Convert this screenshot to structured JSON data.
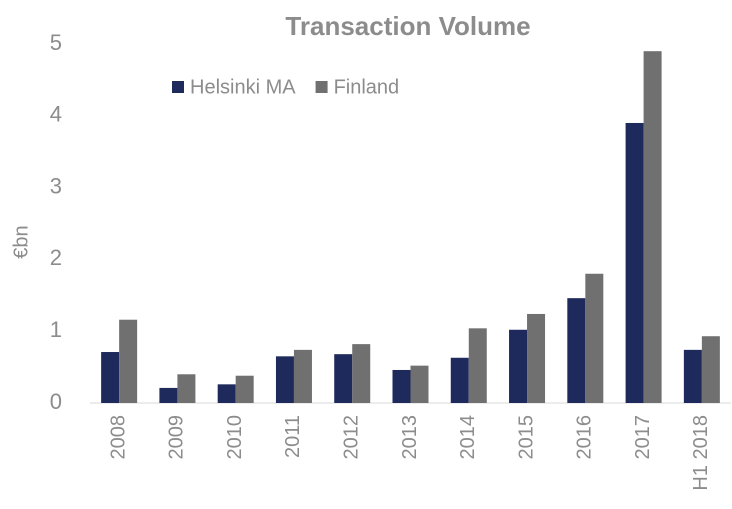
{
  "chart_data": {
    "type": "bar",
    "title": "Transaction Volume",
    "y_label": "€bn",
    "categories": [
      "2008",
      "2009",
      "2010",
      "2011",
      "2012",
      "2013",
      "2014",
      "2015",
      "2016",
      "2017",
      "H1 2018"
    ],
    "series": [
      {
        "name": "Helsinki MA",
        "color": "#1f2a5c",
        "values": [
          0.71,
          0.21,
          0.26,
          0.65,
          0.68,
          0.46,
          0.63,
          1.02,
          1.46,
          3.9,
          0.74
        ]
      },
      {
        "name": "Finland",
        "color": "#707070",
        "values": [
          1.16,
          0.4,
          0.38,
          0.74,
          0.82,
          0.52,
          1.04,
          1.24,
          1.8,
          4.9,
          0.93
        ]
      }
    ],
    "ylim": [
      0,
      5
    ],
    "yticks": [
      0,
      1,
      2,
      3,
      4,
      5
    ],
    "grid": false,
    "legend": "top-left"
  }
}
